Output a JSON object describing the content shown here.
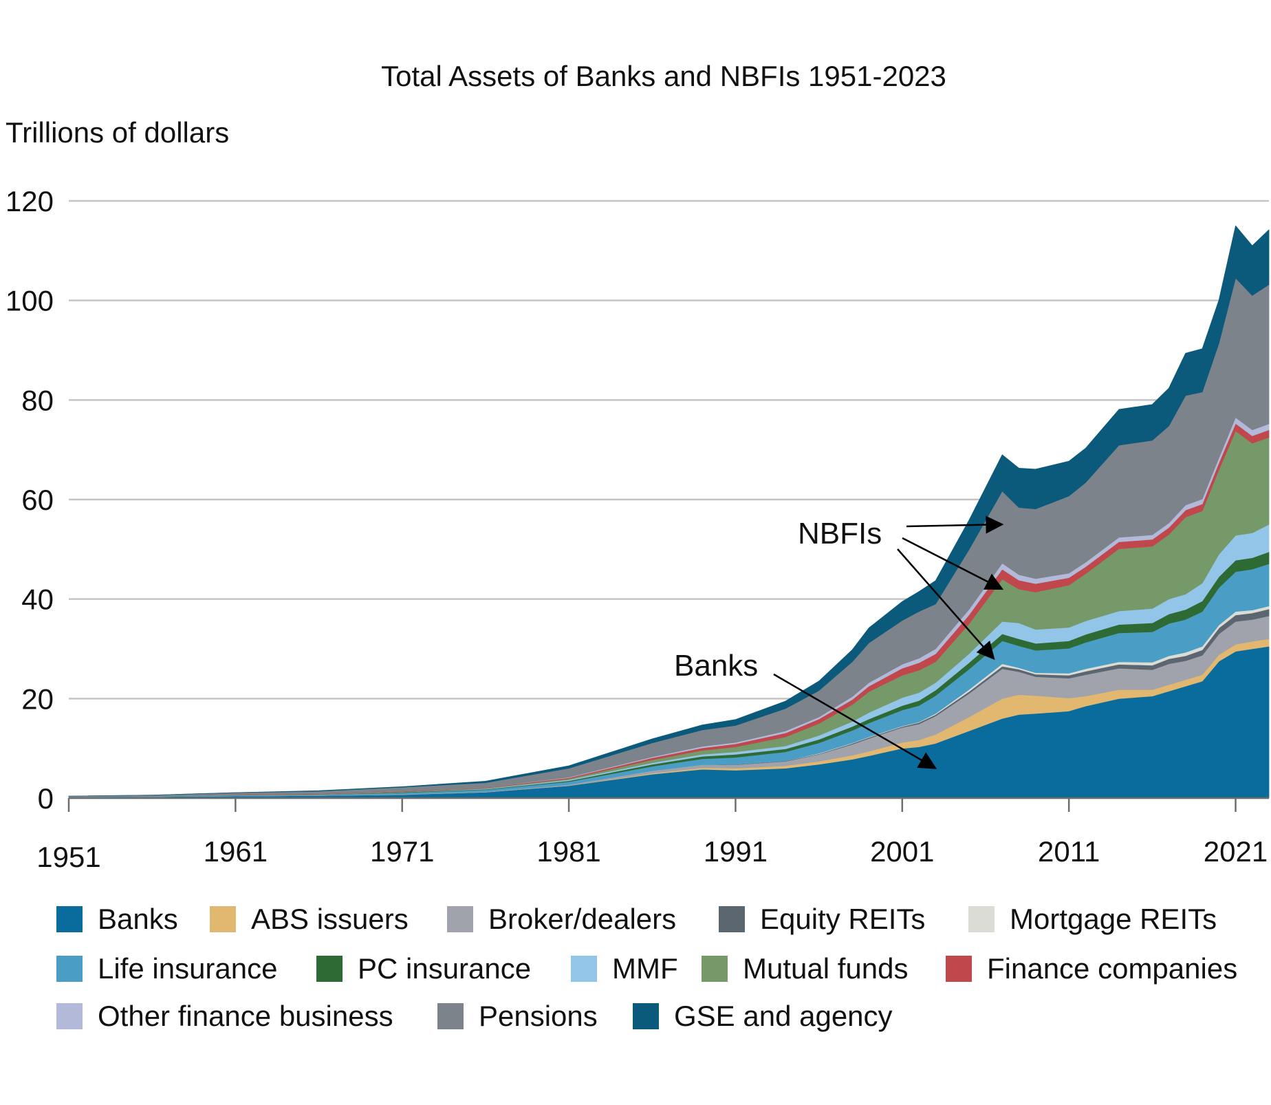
{
  "chart_data": {
    "type": "area",
    "stacked": true,
    "title": "Total Assets of Banks and NBFIs 1951-2023",
    "ylabel": "Trillions of dollars",
    "xlabel": "",
    "xlim": [
      1951,
      2023
    ],
    "ylim": [
      0,
      120
    ],
    "y_ticks": [
      0,
      20,
      40,
      60,
      80,
      100,
      120
    ],
    "x_ticks": [
      1951,
      1961,
      1971,
      1981,
      1991,
      2001,
      2011,
      2021
    ],
    "x_tick_labels": [
      "1951",
      "1961",
      "1971",
      "1981",
      "1991",
      "2001",
      "2011",
      "2021"
    ],
    "y_tick_labels": [
      "0",
      "20",
      "40",
      "60",
      "80",
      "100",
      "120"
    ],
    "grid": "horizontal",
    "legend_position": "bottom",
    "annotations": [
      {
        "text": "NBFIs",
        "arrows_to": [
          {
            "x": 2007,
            "y": 55
          },
          {
            "x": 2007,
            "y": 42
          },
          {
            "x": 2006.5,
            "y": 28
          }
        ]
      },
      {
        "text": "Banks",
        "arrows_to": [
          {
            "x": 2003,
            "y": 6
          }
        ]
      }
    ],
    "x": [
      1951,
      1956,
      1961,
      1966,
      1971,
      1976,
      1981,
      1986,
      1989,
      1991,
      1994,
      1996,
      1998,
      1999,
      2001,
      2002,
      2003,
      2005,
      2007,
      2008,
      2009,
      2011,
      2012,
      2014,
      2016,
      2017,
      2018,
      2019,
      2020,
      2021,
      2022,
      2023
    ],
    "series": [
      {
        "name": "Banks",
        "color": "#0a6b9d",
        "values": [
          0.2,
          0.3,
          0.4,
          0.5,
          0.7,
          1.2,
          2.5,
          4.8,
          5.8,
          5.6,
          6.0,
          6.8,
          7.8,
          8.5,
          10.0,
          10.3,
          11.0,
          13.5,
          16.0,
          16.8,
          17.0,
          17.5,
          18.5,
          20.0,
          20.5,
          21.5,
          22.5,
          23.5,
          27.5,
          29.5,
          30.0,
          30.5
        ]
      },
      {
        "name": "ABS issuers",
        "color": "#e2b870",
        "values": [
          0.0,
          0.0,
          0.0,
          0.0,
          0.0,
          0.0,
          0.0,
          0.2,
          0.3,
          0.4,
          0.5,
          0.6,
          0.8,
          0.9,
          1.2,
          1.4,
          1.8,
          2.8,
          4.0,
          4.0,
          3.6,
          2.6,
          2.0,
          1.8,
          1.3,
          1.3,
          1.3,
          1.3,
          1.3,
          1.4,
          1.5,
          1.5
        ]
      },
      {
        "name": "Broker/dealers",
        "color": "#a0a3ab",
        "values": [
          0.0,
          0.0,
          0.0,
          0.0,
          0.1,
          0.1,
          0.2,
          0.5,
          0.6,
          0.7,
          0.9,
          1.4,
          2.2,
          2.6,
          3.0,
          3.2,
          3.7,
          4.7,
          6.0,
          4.6,
          3.8,
          4.0,
          4.3,
          4.3,
          4.0,
          4.2,
          3.8,
          3.9,
          4.2,
          4.6,
          4.4,
          4.6
        ]
      },
      {
        "name": "Equity REITs",
        "color": "#5c6670",
        "values": [
          0.0,
          0.0,
          0.0,
          0.0,
          0.0,
          0.0,
          0.0,
          0.0,
          0.0,
          0.1,
          0.1,
          0.1,
          0.2,
          0.2,
          0.2,
          0.3,
          0.3,
          0.4,
          0.5,
          0.5,
          0.5,
          0.6,
          0.7,
          0.8,
          0.9,
          1.0,
          1.0,
          1.1,
          1.2,
          1.3,
          1.3,
          1.4
        ]
      },
      {
        "name": "Mortgage REITs",
        "color": "#dcdcd7",
        "values": [
          0.0,
          0.0,
          0.0,
          0.0,
          0.0,
          0.0,
          0.0,
          0.0,
          0.0,
          0.0,
          0.0,
          0.1,
          0.1,
          0.1,
          0.1,
          0.1,
          0.2,
          0.4,
          0.5,
          0.3,
          0.3,
          0.4,
          0.5,
          0.5,
          0.6,
          0.6,
          0.7,
          0.7,
          0.6,
          0.7,
          0.6,
          0.6
        ]
      },
      {
        "name": "Life insurance",
        "color": "#4a9ec6",
        "values": [
          0.1,
          0.1,
          0.2,
          0.2,
          0.3,
          0.4,
          0.6,
          0.9,
          1.2,
          1.4,
          1.8,
          2.1,
          2.5,
          2.8,
          3.2,
          3.3,
          3.6,
          4.1,
          4.6,
          4.4,
          4.5,
          5.0,
          5.3,
          5.8,
          6.1,
          6.5,
          6.6,
          7.0,
          7.5,
          8.0,
          8.2,
          8.5
        ]
      },
      {
        "name": "PC insurance",
        "color": "#2e6b34",
        "values": [
          0.0,
          0.0,
          0.0,
          0.0,
          0.1,
          0.1,
          0.2,
          0.4,
          0.5,
          0.6,
          0.6,
          0.7,
          0.8,
          0.8,
          0.9,
          1.0,
          1.1,
          1.3,
          1.4,
          1.4,
          1.4,
          1.5,
          1.6,
          1.7,
          1.8,
          1.9,
          2.0,
          2.1,
          2.2,
          2.3,
          2.3,
          2.4
        ]
      },
      {
        "name": "MMF",
        "color": "#93c5e8",
        "values": [
          0.0,
          0.0,
          0.0,
          0.0,
          0.0,
          0.1,
          0.2,
          0.3,
          0.4,
          0.5,
          0.6,
          0.8,
          1.0,
          1.3,
          1.6,
          1.6,
          1.5,
          1.8,
          2.5,
          3.2,
          2.8,
          2.7,
          2.7,
          2.7,
          2.9,
          3.0,
          3.1,
          3.6,
          4.5,
          5.0,
          5.0,
          5.5
        ]
      },
      {
        "name": "Mutual funds",
        "color": "#76996a",
        "values": [
          0.0,
          0.0,
          0.1,
          0.1,
          0.1,
          0.1,
          0.2,
          0.6,
          0.8,
          1.0,
          1.8,
          2.4,
          3.4,
          4.2,
          4.5,
          4.5,
          4.2,
          6.0,
          8.5,
          6.8,
          7.5,
          8.5,
          9.5,
          12.5,
          12.5,
          13.0,
          15.5,
          14.5,
          17.0,
          21.0,
          18.0,
          17.5
        ]
      },
      {
        "name": "Finance companies",
        "color": "#c0474c",
        "values": [
          0.0,
          0.0,
          0.1,
          0.1,
          0.1,
          0.1,
          0.2,
          0.4,
          0.5,
          0.6,
          0.8,
          0.9,
          1.0,
          1.1,
          1.4,
          1.5,
          1.6,
          1.8,
          2.0,
          1.8,
          1.7,
          1.5,
          1.4,
          1.4,
          1.4,
          1.4,
          1.4,
          1.4,
          1.4,
          1.5,
          1.5,
          1.5
        ]
      },
      {
        "name": "Other finance business",
        "color": "#b3bad9",
        "values": [
          0.0,
          0.0,
          0.0,
          0.0,
          0.0,
          0.0,
          0.1,
          0.2,
          0.3,
          0.3,
          0.4,
          0.4,
          0.6,
          0.7,
          0.8,
          0.9,
          1.0,
          1.1,
          1.2,
          1.1,
          1.0,
          0.9,
          0.9,
          0.9,
          0.9,
          0.9,
          1.0,
          1.0,
          1.0,
          1.2,
          1.2,
          1.2
        ]
      },
      {
        "name": "Pensions",
        "color": "#7c838b",
        "values": [
          0.1,
          0.2,
          0.3,
          0.5,
          0.8,
          1.0,
          1.8,
          2.8,
          3.3,
          3.4,
          4.5,
          5.3,
          7.0,
          8.0,
          8.8,
          9.4,
          9.0,
          12.0,
          14.5,
          13.5,
          14.0,
          15.5,
          16.0,
          18.5,
          19.0,
          19.5,
          22.0,
          21.5,
          23.0,
          28.0,
          27.0,
          28.0
        ]
      },
      {
        "name": "GSE and agency",
        "color": "#0c5a7b",
        "values": [
          0.0,
          0.0,
          0.0,
          0.1,
          0.1,
          0.3,
          0.5,
          0.8,
          1.0,
          1.2,
          1.5,
          1.9,
          2.4,
          3.0,
          3.8,
          4.0,
          4.7,
          5.9,
          7.3,
          7.9,
          8.0,
          7.0,
          6.9,
          7.2,
          7.2,
          7.6,
          8.5,
          8.7,
          8.7,
          10.5,
          10.0,
          11.0
        ]
      }
    ]
  }
}
